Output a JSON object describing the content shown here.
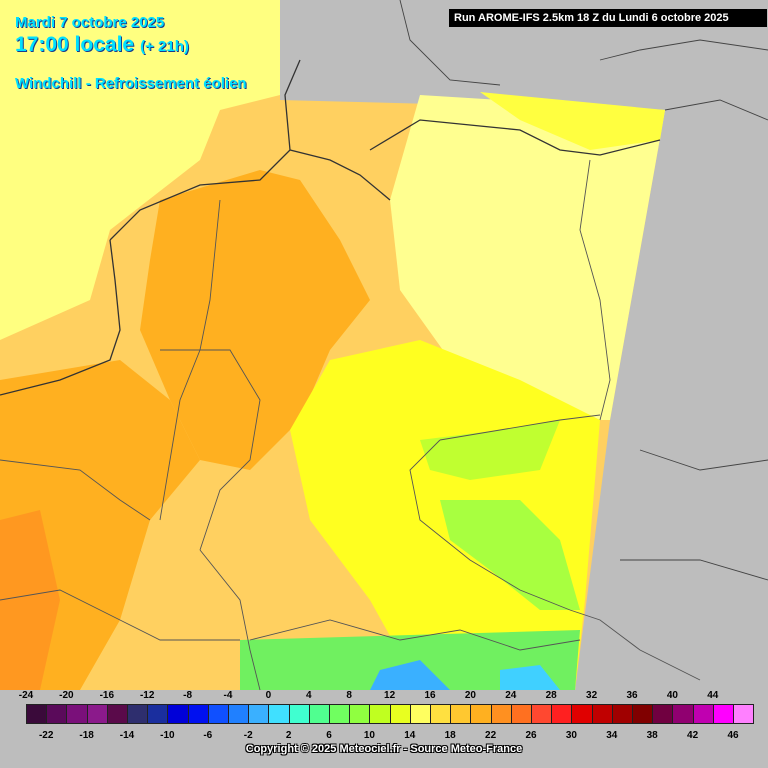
{
  "header": {
    "date": "Mardi 7 octobre 2025",
    "time": "17:00 locale",
    "offset": "(+ 21h)",
    "variable": "Windchill - Refroissement éolien",
    "run": "Run AROME-IFS 2.5km 18 Z du Lundi 6 octobre 2025"
  },
  "legend": {
    "values": [
      -24,
      -22,
      -20,
      -18,
      -16,
      -14,
      -12,
      -10,
      -8,
      -6,
      -4,
      -2,
      0,
      2,
      4,
      6,
      8,
      10,
      12,
      14,
      16,
      18,
      20,
      22,
      24,
      26,
      28,
      30,
      32,
      34,
      36,
      38,
      40,
      42,
      44,
      46
    ],
    "colors": [
      "#3a0a3a",
      "#5a0a5a",
      "#7a107a",
      "#8b1a8b",
      "#5a0a4a",
      "#2e2e6e",
      "#1a2e9e",
      "#0000d8",
      "#0010f0",
      "#1050ff",
      "#2080ff",
      "#3ab0ff",
      "#40e0ff",
      "#40ffd0",
      "#50ff90",
      "#70ff60",
      "#90ff40",
      "#c0ff20",
      "#e8ff20",
      "#ffff60",
      "#ffe040",
      "#ffc830",
      "#ffb020",
      "#ff9020",
      "#ff7020",
      "#ff4830",
      "#ff2020",
      "#e00000",
      "#c00000",
      "#a00000",
      "#800000",
      "#700040",
      "#900070",
      "#c000b0",
      "#ff00ff",
      "#ff80ff"
    ]
  },
  "copyright": "Copyright © 2025 Meteociel.fr - Source Meteo-France"
}
